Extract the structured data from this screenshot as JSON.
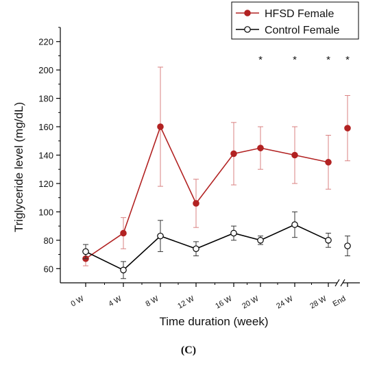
{
  "chart_data": {
    "type": "line",
    "xlabel": "Time duration (week)",
    "ylabel": "Triglyceride level (mg/dL)",
    "ylim": [
      50,
      230
    ],
    "yticks": [
      60,
      80,
      100,
      120,
      140,
      160,
      180,
      200,
      220
    ],
    "categories": [
      "0 W",
      "4 W",
      "8 W",
      "12 W",
      "16 W",
      "20 W",
      "24 W",
      "28 W",
      "End"
    ],
    "axis_break_before": "End",
    "series": [
      {
        "name": "HFSD Female",
        "color": "#b22222",
        "marker": "filled-circle",
        "connected_through": "28 W",
        "values": [
          67,
          85,
          160,
          106,
          141,
          145,
          140,
          135,
          159
        ],
        "error": [
          5,
          11,
          42,
          17,
          22,
          15,
          20,
          19,
          23
        ]
      },
      {
        "name": "Control Female",
        "color": "#000000",
        "marker": "open-circle",
        "connected_through": "28 W",
        "values": [
          72,
          59,
          83,
          74,
          85,
          80,
          91,
          80,
          76
        ],
        "error": [
          5,
          6,
          11,
          5,
          5,
          3,
          9,
          5,
          7
        ]
      }
    ],
    "significance_markers": [
      {
        "category": "20 W",
        "text": "*"
      },
      {
        "category": "24 W",
        "text": "*"
      },
      {
        "category": "28 W",
        "text": "*"
      },
      {
        "category": "End",
        "text": "*"
      }
    ],
    "legend_position": "top-right"
  },
  "panel_label": "(C)"
}
